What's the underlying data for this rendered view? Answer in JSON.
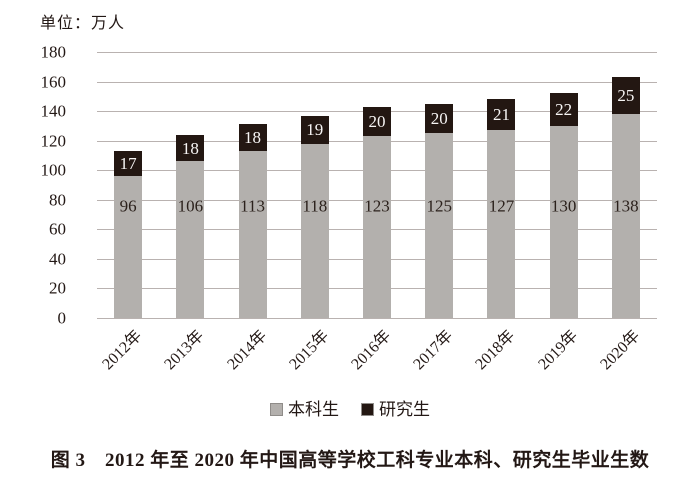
{
  "unit_label": "单位：万人",
  "caption": "图 3　2012 年至 2020 年中国高等学校工科专业本科、研究生毕业生数",
  "colors": {
    "undergraduate": "#b3b0ad",
    "graduate": "#231712",
    "grid": "#b9b2b0",
    "legend_swatch_border": "#8f8c89",
    "grad_label_text": "#f7f5f4",
    "under_label_text": "#2b211c"
  },
  "legend": {
    "items": [
      {
        "label": "本科生",
        "key": "undergraduate"
      },
      {
        "label": "研究生",
        "key": "graduate"
      }
    ]
  },
  "chart_data": {
    "type": "bar",
    "stacked": true,
    "title": "",
    "xlabel": "",
    "ylabel": "单位：万人",
    "categories": [
      "2012年",
      "2013年",
      "2014年",
      "2015年",
      "2016年",
      "2017年",
      "2018年",
      "2019年",
      "2020年"
    ],
    "series": [
      {
        "name": "本科生",
        "key": "undergraduate",
        "values": [
          96,
          106,
          113,
          118,
          123,
          125,
          127,
          130,
          138
        ]
      },
      {
        "name": "研究生",
        "key": "graduate",
        "values": [
          17,
          18,
          18,
          19,
          20,
          20,
          21,
          22,
          25
        ]
      }
    ],
    "ylim": [
      0,
      180
    ],
    "yticks": [
      0,
      20,
      40,
      60,
      80,
      100,
      120,
      140,
      160,
      180
    ],
    "grid": true,
    "legend_position": "bottom",
    "value_labels": true,
    "under_label_height_units": 76
  }
}
